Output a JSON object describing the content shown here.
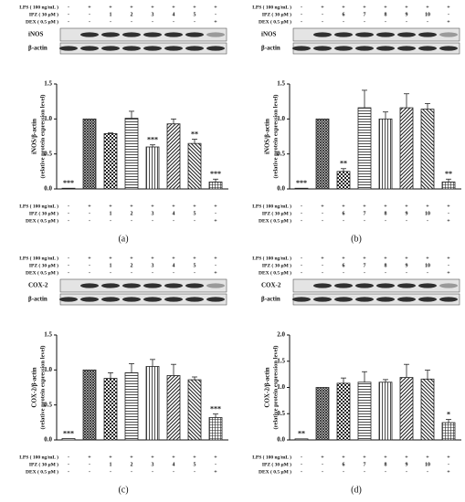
{
  "chart_data": [
    {
      "type": "bar",
      "panel_label": "(a)",
      "blot_labels": [
        "iNOS",
        "β-actin"
      ],
      "ylabel": "iNOS/β-actin",
      "ylabel2": "(relative protein expression level)",
      "conditions": [
        {
          "label": "LPS ( 100 ng/mL )",
          "values": [
            "-",
            "+",
            "+",
            "+",
            "+",
            "+",
            "+",
            "+"
          ]
        },
        {
          "label": "IPZ ( 30 μM )",
          "values": [
            "-",
            "-",
            "1",
            "2",
            "3",
            "4",
            "5",
            "-"
          ]
        },
        {
          "label": "DEX ( 0.5 μM )",
          "values": [
            "-",
            "-",
            "-",
            "-",
            "-",
            "-",
            "-",
            "+"
          ]
        }
      ],
      "values": [
        0.01,
        1.0,
        0.79,
        1.01,
        0.6,
        0.93,
        0.65,
        0.1
      ],
      "errors": [
        0,
        0,
        0.01,
        0.1,
        0.03,
        0.07,
        0.06,
        0.04
      ],
      "annotations": [
        "***",
        null,
        null,
        null,
        "***",
        null,
        "**",
        "***"
      ],
      "color": "#222222",
      "ylim": [
        0,
        1.5
      ],
      "yticks": [
        {
          "value": 0,
          "label": "0.0"
        },
        0.5,
        {
          "value": 1,
          "label": "1.0"
        },
        1.5
      ]
    },
    {
      "type": "bar",
      "panel_label": "(b)",
      "blot_labels": [
        "iNOS",
        "β-actin"
      ],
      "ylabel": "iNOS/β-actin",
      "ylabel2": "(relative protein expression level)",
      "conditions": [
        {
          "label": "LPS ( 100 ng/mL )",
          "values": [
            "-",
            "+",
            "+",
            "+",
            "+",
            "+",
            "+",
            "+"
          ]
        },
        {
          "label": "IPZ ( 30 μM )",
          "values": [
            "-",
            "-",
            "6",
            "7",
            "8",
            "9",
            "10",
            "-"
          ]
        },
        {
          "label": "DEX ( 0.5 μM )",
          "values": [
            "-",
            "-",
            "-",
            "-",
            "-",
            "-",
            "-",
            "+"
          ]
        }
      ],
      "values": [
        0.01,
        1.0,
        0.25,
        1.16,
        1.0,
        1.16,
        1.14,
        0.1
      ],
      "errors": [
        0,
        0,
        0.04,
        0.25,
        0.1,
        0.2,
        0.08,
        0.04
      ],
      "annotations": [
        "***",
        null,
        "**",
        null,
        null,
        null,
        null,
        "**"
      ],
      "color": "#222222",
      "ylim": [
        0,
        1.5
      ],
      "yticks": [
        {
          "value": 0,
          "label": "0.0"
        },
        0.5,
        {
          "value": 1,
          "label": "1.0"
        },
        1.5
      ]
    },
    {
      "type": "bar",
      "panel_label": "(c)",
      "blot_labels": [
        "COX-2",
        "β-actin"
      ],
      "ylabel": "COX-2/β-actin",
      "ylabel2": "(relative protein expression level)",
      "conditions": [
        {
          "label": "LPS ( 100 ng/mL )",
          "values": [
            "-",
            "+",
            "+",
            "+",
            "+",
            "+",
            "+",
            "+"
          ]
        },
        {
          "label": "IPZ ( 30 μM )",
          "values": [
            "-",
            "-",
            "1",
            "2",
            "3",
            "4",
            "5",
            "-"
          ]
        },
        {
          "label": "DEX ( 0.5 μM )",
          "values": [
            "-",
            "-",
            "-",
            "-",
            "-",
            "-",
            "-",
            "+"
          ]
        }
      ],
      "values": [
        0.02,
        1.0,
        0.88,
        0.96,
        1.05,
        0.92,
        0.86,
        0.32
      ],
      "errors": [
        0,
        0,
        0.08,
        0.13,
        0.1,
        0.16,
        0.04,
        0.05
      ],
      "annotations": [
        "***",
        null,
        null,
        null,
        null,
        null,
        null,
        "***"
      ],
      "color": "#222222",
      "ylim": [
        0,
        1.5
      ],
      "yticks": [
        {
          "value": 0,
          "label": "0.0"
        },
        0.5,
        {
          "value": 1,
          "label": "1.0"
        },
        1.5
      ]
    },
    {
      "type": "bar",
      "panel_label": "(d)",
      "blot_labels": [
        "COX-2",
        "β-actin"
      ],
      "ylabel": "COX-2/β-actin",
      "ylabel2": "(relative protein expression level)",
      "conditions": [
        {
          "label": "LPS ( 100 ng/mL )",
          "values": [
            "-",
            "+",
            "+",
            "+",
            "+",
            "+",
            "+",
            "+"
          ]
        },
        {
          "label": "IPZ ( 30 μM )",
          "values": [
            "-",
            "-",
            "6",
            "7",
            "8",
            "9",
            "10",
            "-"
          ]
        },
        {
          "label": "DEX ( 0.5 μM )",
          "values": [
            "-",
            "-",
            "-",
            "-",
            "-",
            "-",
            "-",
            "+"
          ]
        }
      ],
      "values": [
        0.02,
        1.0,
        1.08,
        1.1,
        1.1,
        1.19,
        1.16,
        0.33
      ],
      "errors": [
        0,
        0,
        0.1,
        0.2,
        0.05,
        0.25,
        0.17,
        0.06
      ],
      "annotations": [
        "**",
        null,
        null,
        null,
        null,
        null,
        null,
        "*"
      ],
      "color": "#222222",
      "ylim": [
        0,
        2
      ],
      "yticks": [
        {
          "value": 0,
          "label": "0.0"
        },
        0.5,
        {
          "value": 1,
          "label": "1.0"
        },
        1.5,
        {
          "value": 2,
          "label": "2.0"
        }
      ]
    }
  ]
}
